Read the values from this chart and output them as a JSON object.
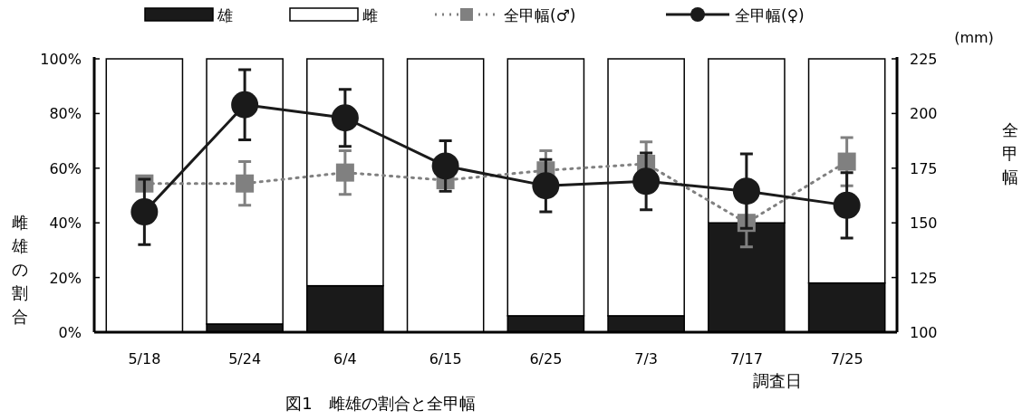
{
  "chart_data": {
    "type": "bar",
    "stacked": true,
    "categories": [
      "5/18",
      "5/24",
      "6/4",
      "6/15",
      "6/25",
      "7/3",
      "7/17",
      "7/25"
    ],
    "series": [
      {
        "name": "雄",
        "color": "#1a1a1a",
        "values": [
          0,
          3,
          17,
          0,
          6,
          6,
          40,
          18
        ]
      },
      {
        "name": "雌",
        "color": "#ffffff",
        "values": [
          100,
          97,
          83,
          100,
          94,
          94,
          60,
          82
        ]
      },
      {
        "name": "全甲幅(♂)",
        "type": "line",
        "axis": "y2",
        "color": "#808080",
        "marker": "square",
        "line_style": "dotted",
        "values": [
          168,
          168,
          173,
          169.5,
          174,
          177,
          150,
          178
        ],
        "errors": [
          null,
          10,
          10,
          null,
          9,
          10,
          11,
          11
        ]
      },
      {
        "name": "全甲幅(♀)",
        "type": "line",
        "axis": "y2",
        "color": "#1a1a1a",
        "marker": "circle",
        "line_style": "solid",
        "values": [
          155,
          204,
          198,
          176,
          167,
          169,
          164.5,
          158
        ],
        "errors": [
          15,
          16,
          13,
          11.5,
          12,
          13,
          17,
          15
        ]
      }
    ],
    "ylim": [
      0,
      100
    ],
    "yticks": [
      {
        "value": 0,
        "label": "0%"
      },
      {
        "value": 20,
        "label": "20%"
      },
      {
        "value": 40,
        "label": "40%"
      },
      {
        "value": 60,
        "label": "60%"
      },
      {
        "value": 80,
        "label": "80%"
      },
      {
        "value": 100,
        "label": "100%"
      }
    ],
    "y2lim": [
      100,
      225
    ],
    "y2ticks": [
      100,
      125,
      150,
      175,
      200,
      225
    ],
    "ylabel": "雌雄の割合",
    "y2label": "全甲幅",
    "xlabel": "調査日",
    "annotations": [
      "(mm)",
      "図1　雌雄の割合と全甲幅"
    ],
    "legend": "top",
    "grid": false
  }
}
